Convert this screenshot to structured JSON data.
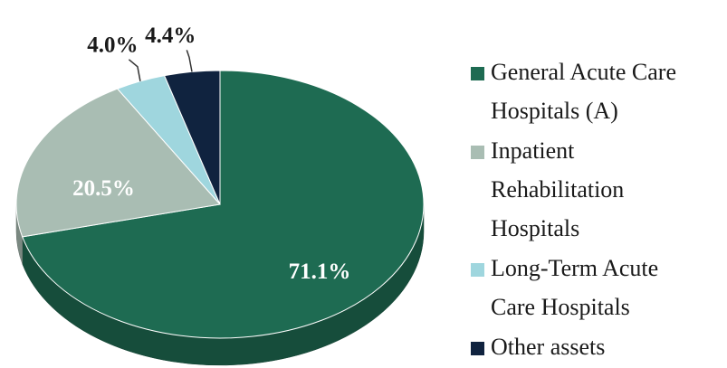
{
  "chart_data": {
    "type": "pie",
    "categories": [
      "General Acute Care Hospitals (A)",
      "Inpatient Rehabilitation Hospitals",
      "Long-Term Acute Care Hospitals",
      "Other assets"
    ],
    "values": [
      71.1,
      20.5,
      4.0,
      4.4
    ],
    "value_labels": [
      "71.1%",
      "20.5%",
      "4.0%",
      "4.4%"
    ],
    "colors": [
      "#1e6b52",
      "#a9bdb3",
      "#9fd6de",
      "#10233f"
    ],
    "legend": "right"
  }
}
